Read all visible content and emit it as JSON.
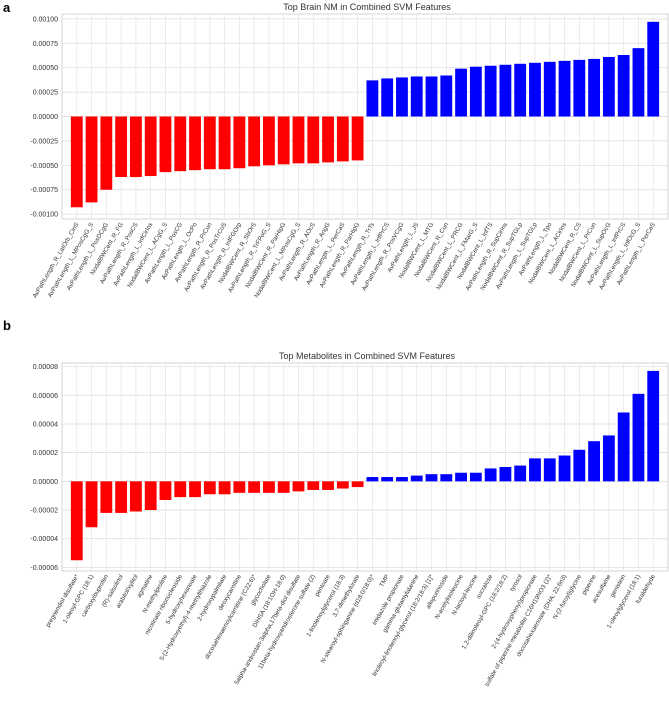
{
  "chart_data": [
    {
      "type": "bar",
      "panel_label": "a",
      "title": "Top Brain NM in Combined SVM Features",
      "xlabel": "",
      "ylabel": "",
      "ylim": [
        -0.00105,
        0.00105
      ],
      "yticks": [
        "-0.00100",
        "-0.00075",
        "-0.00050",
        "-0.00025",
        "0.00000",
        "0.00025",
        "0.00050",
        "0.00075",
        "0.00100"
      ],
      "ytick_values": [
        -0.001,
        -0.00075,
        -0.0005,
        -0.00025,
        0,
        0.00025,
        0.0005,
        0.00075,
        0.001
      ],
      "grid": true,
      "colors": {
        "negative": "#ff0000",
        "positive": "#0000ff"
      },
      "categories": [
        "AvPathLength_R_LatOrb_CinS",
        "AvPathLength_L_MPosCgG_S",
        "AvPathLength_L_PosDCgG",
        "NodalBWCent_R_FG",
        "AvPathLength_R_PosCS",
        "AvPathLength_L_InfCirIns",
        "NodalBWCent_L_ACgG_S",
        "AvPathLength_L_PosCG",
        "AvPathLength_L_OcPo",
        "AvPathLength_R_PrCun",
        "AvPathLength_R_PosTrCoS",
        "AvPathLength_R_InfFGOrp",
        "NodalBWCent_R_SbOrS",
        "AvPathLength_R_TrFPoG_S",
        "NodalBWCent_R_ParHipG",
        "NodalBWCent_L_MPosCgG_S",
        "AvPathLength_R_AOcS",
        "AvPathLength_R_AngG",
        "AvPathLength_L_PerCaS",
        "AvPathLength_R_ParHipG",
        "AvPathLength_R_TrTs",
        "AvPathLength_L_InfPrCS",
        "AvPathLength_R_PosVCgG",
        "AvPathLength_L_JS",
        "NodalBWCent_L_MTG",
        "NodalBWCent_R_Cun",
        "NodalBWCent_L_PRCG",
        "NodalBWCent_L_FMarG_S",
        "NodalBWCent_L_InfTS",
        "AvPathLength_R_SupCirIns",
        "NodalBWCent_R_SupTGLp",
        "AvPathLength_L_SupTGLp",
        "AvPathLength_L_Tpo",
        "NodalBWCent_L_ACirIns",
        "NodalBWCent_R_CS",
        "NodalBWCent_L_PrCun",
        "NodalBWCent_L_SupOcG",
        "AvPathLength_L_InfPrCS",
        "AvPathLength_L_InfOcG_S",
        "AvPathLength_L_PerCaS"
      ],
      "values": [
        -0.00093,
        -0.00088,
        -0.00075,
        -0.00062,
        -0.00062,
        -0.00061,
        -0.00057,
        -0.00056,
        -0.00055,
        -0.00054,
        -0.00054,
        -0.00053,
        -0.00051,
        -0.0005,
        -0.00049,
        -0.00048,
        -0.00048,
        -0.00047,
        -0.00046,
        -0.00045,
        0.00037,
        0.00039,
        0.0004,
        0.00041,
        0.00041,
        0.00042,
        0.00049,
        0.00051,
        0.00052,
        0.00053,
        0.00054,
        0.00055,
        0.00056,
        0.00057,
        0.00058,
        0.00059,
        0.00061,
        0.00063,
        0.0007,
        0.00097
      ]
    },
    {
      "type": "bar",
      "panel_label": "b",
      "title": "Top Metabolites in Combined SVM Features",
      "xlabel": "",
      "ylabel": "",
      "ylim": [
        -6.25e-05,
        8.25e-05
      ],
      "yticks": [
        "-0.00006",
        "-0.00004",
        "-0.00002",
        "0.00000",
        "0.00002",
        "0.00004",
        "0.00006",
        "0.00008"
      ],
      "ytick_values": [
        -6e-05,
        -4e-05,
        -2e-05,
        0,
        2e-05,
        4e-05,
        6e-05,
        8e-05
      ],
      "grid": true,
      "colors": {
        "negative": "#ff0000",
        "positive": "#0000ff"
      },
      "categories": [
        "pregnendiol disulfate*",
        "1-oleoyl-GPC (18:1)",
        "carboxyibuprofen",
        "(R)-salsolinol",
        "arabitol/xylitol",
        "agmatine",
        "N-methylproline",
        "nicotinate ribonucleoside",
        "5-hydroxyhexanoate",
        "5-(2-Hydroxyethyl)-4-methylthiazole",
        "2-hydroxypalmitate",
        "deoxycarnitine",
        "docosahexaenoylcarnitine (C22:6)*",
        "glycocholate",
        "DIHSA (18:1OH-18:0)",
        "5alpha-androstan-3alpha,17beta-diol disulfate",
        "11beta-hydroxyandrosterone sulfate (2)",
        "pentoate",
        "1-linolenoylglycerol (18:3)",
        "3,7-dimethylurate",
        "N-stearoyl-sphinganine (d18:0/18:0)*",
        "TMP",
        "imidazole propionate",
        "gamma-glutamylalanine",
        "linoleoyl-linolenoyl-glycerol (18:2/18:3) [1]*",
        "allopurinoside",
        "N-acetylisoleucine",
        "N-lactoyl-leucine",
        "sucralose",
        "1,2-dilinoleoyl-GPC (18:2/18:2)",
        "tyrosol",
        "2-(4-hydroxyphenyl)propionate",
        "sulfate of piperine metabolite C16H19NO3 (2)*",
        "docosahexaenoate (DHA; 22:6n3)",
        "N-(2-furoyl)glycine",
        "piperine",
        "acesulfame",
        "genistein",
        "1-oleoylglycerol (18:1)",
        "furaldehyde"
      ],
      "values": [
        -5.5e-05,
        -3.2e-05,
        -2.2e-05,
        -2.2e-05,
        -2.1e-05,
        -2e-05,
        -1.3e-05,
        -1.1e-05,
        -1.1e-05,
        -9e-06,
        -9e-06,
        -8e-06,
        -8e-06,
        -8e-06,
        -8e-06,
        -7e-06,
        -6e-06,
        -6e-06,
        -5e-06,
        -4e-06,
        3e-06,
        3e-06,
        3e-06,
        4e-06,
        5e-06,
        5e-06,
        6e-06,
        6e-06,
        9e-06,
        1e-05,
        1.1e-05,
        1.6e-05,
        1.6e-05,
        1.8e-05,
        2.2e-05,
        2.8e-05,
        3.2e-05,
        4.8e-05,
        6.1e-05,
        7.7e-05
      ]
    }
  ]
}
